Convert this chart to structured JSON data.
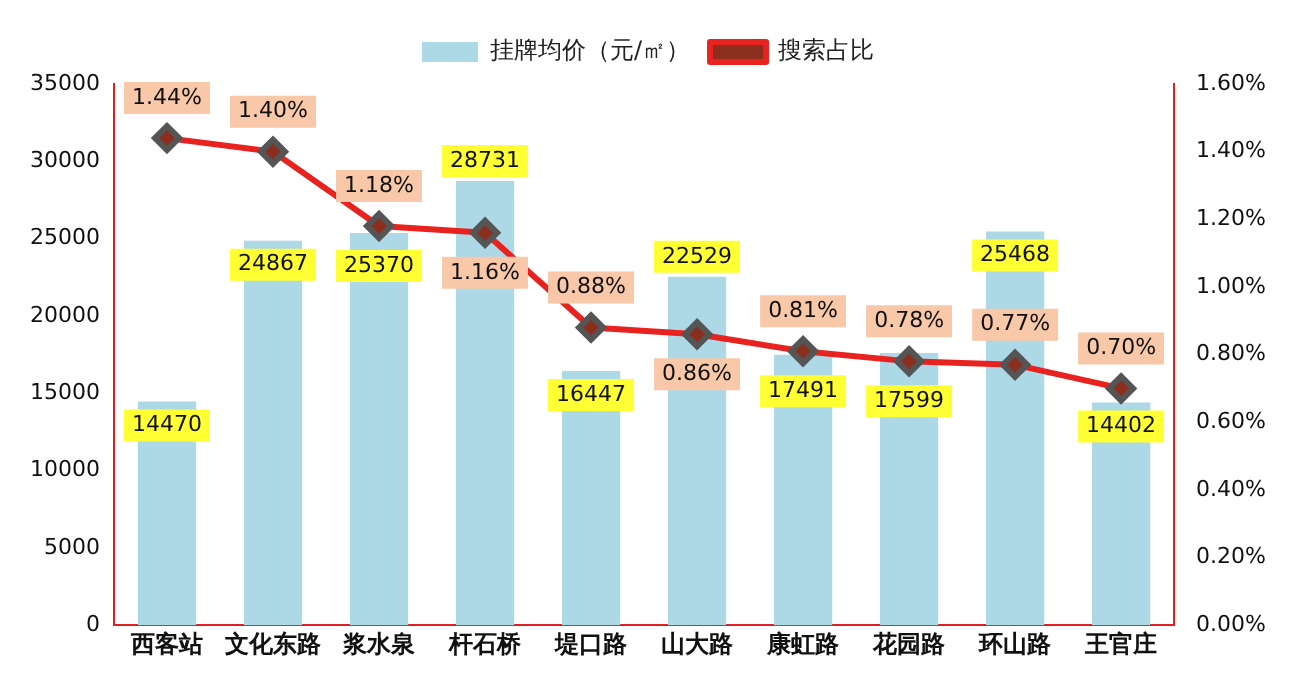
{
  "chart_data": {
    "type": "bar",
    "categories": [
      "西客站",
      "文化东路",
      "浆水泉",
      "杆石桥",
      "堤口路",
      "山大路",
      "康虹路",
      "花园路",
      "环山路",
      "王官庄"
    ],
    "series": [
      {
        "name": "挂牌均价（元/㎡）",
        "color": "#add8e6",
        "values": [
          14470,
          24867,
          25370,
          28731,
          16447,
          22529,
          17491,
          17599,
          25468,
          14402
        ],
        "value_labels": [
          "14470",
          "24867",
          "25370",
          "28731",
          "16447",
          "22529",
          "17491",
          "17599",
          "25468",
          "14402"
        ]
      },
      {
        "name": "搜索占比",
        "type": "line",
        "axis": "y2",
        "color": "#e8231f",
        "marker": "diamond",
        "values": [
          1.44,
          1.4,
          1.18,
          1.16,
          0.88,
          0.86,
          0.81,
          0.78,
          0.77,
          0.7
        ],
        "value_labels": [
          "1.44%",
          "1.40%",
          "1.18%",
          "1.16%",
          "0.88%",
          "0.86%",
          "0.81%",
          "0.78%",
          "0.77%",
          "0.70%"
        ]
      }
    ],
    "ylim": [
      0,
      35000
    ],
    "yticks": [
      0,
      5000,
      10000,
      15000,
      20000,
      25000,
      30000,
      35000
    ],
    "y2lim": [
      0,
      1.6
    ],
    "y2ticks": [
      {
        "value": 0,
        "label": "0.00%"
      },
      {
        "value": 0.2,
        "label": "0.20%"
      },
      {
        "value": 0.4,
        "label": "0.40%"
      },
      {
        "value": 0.6,
        "label": "0.60%"
      },
      {
        "value": 0.8,
        "label": "0.80%"
      },
      {
        "value": 1.0,
        "label": "1.00%"
      },
      {
        "value": 1.2,
        "label": "1.20%"
      },
      {
        "value": 1.4,
        "label": "1.40%"
      },
      {
        "value": 1.6,
        "label": "1.60%"
      }
    ],
    "legend": "top",
    "grid": false
  }
}
